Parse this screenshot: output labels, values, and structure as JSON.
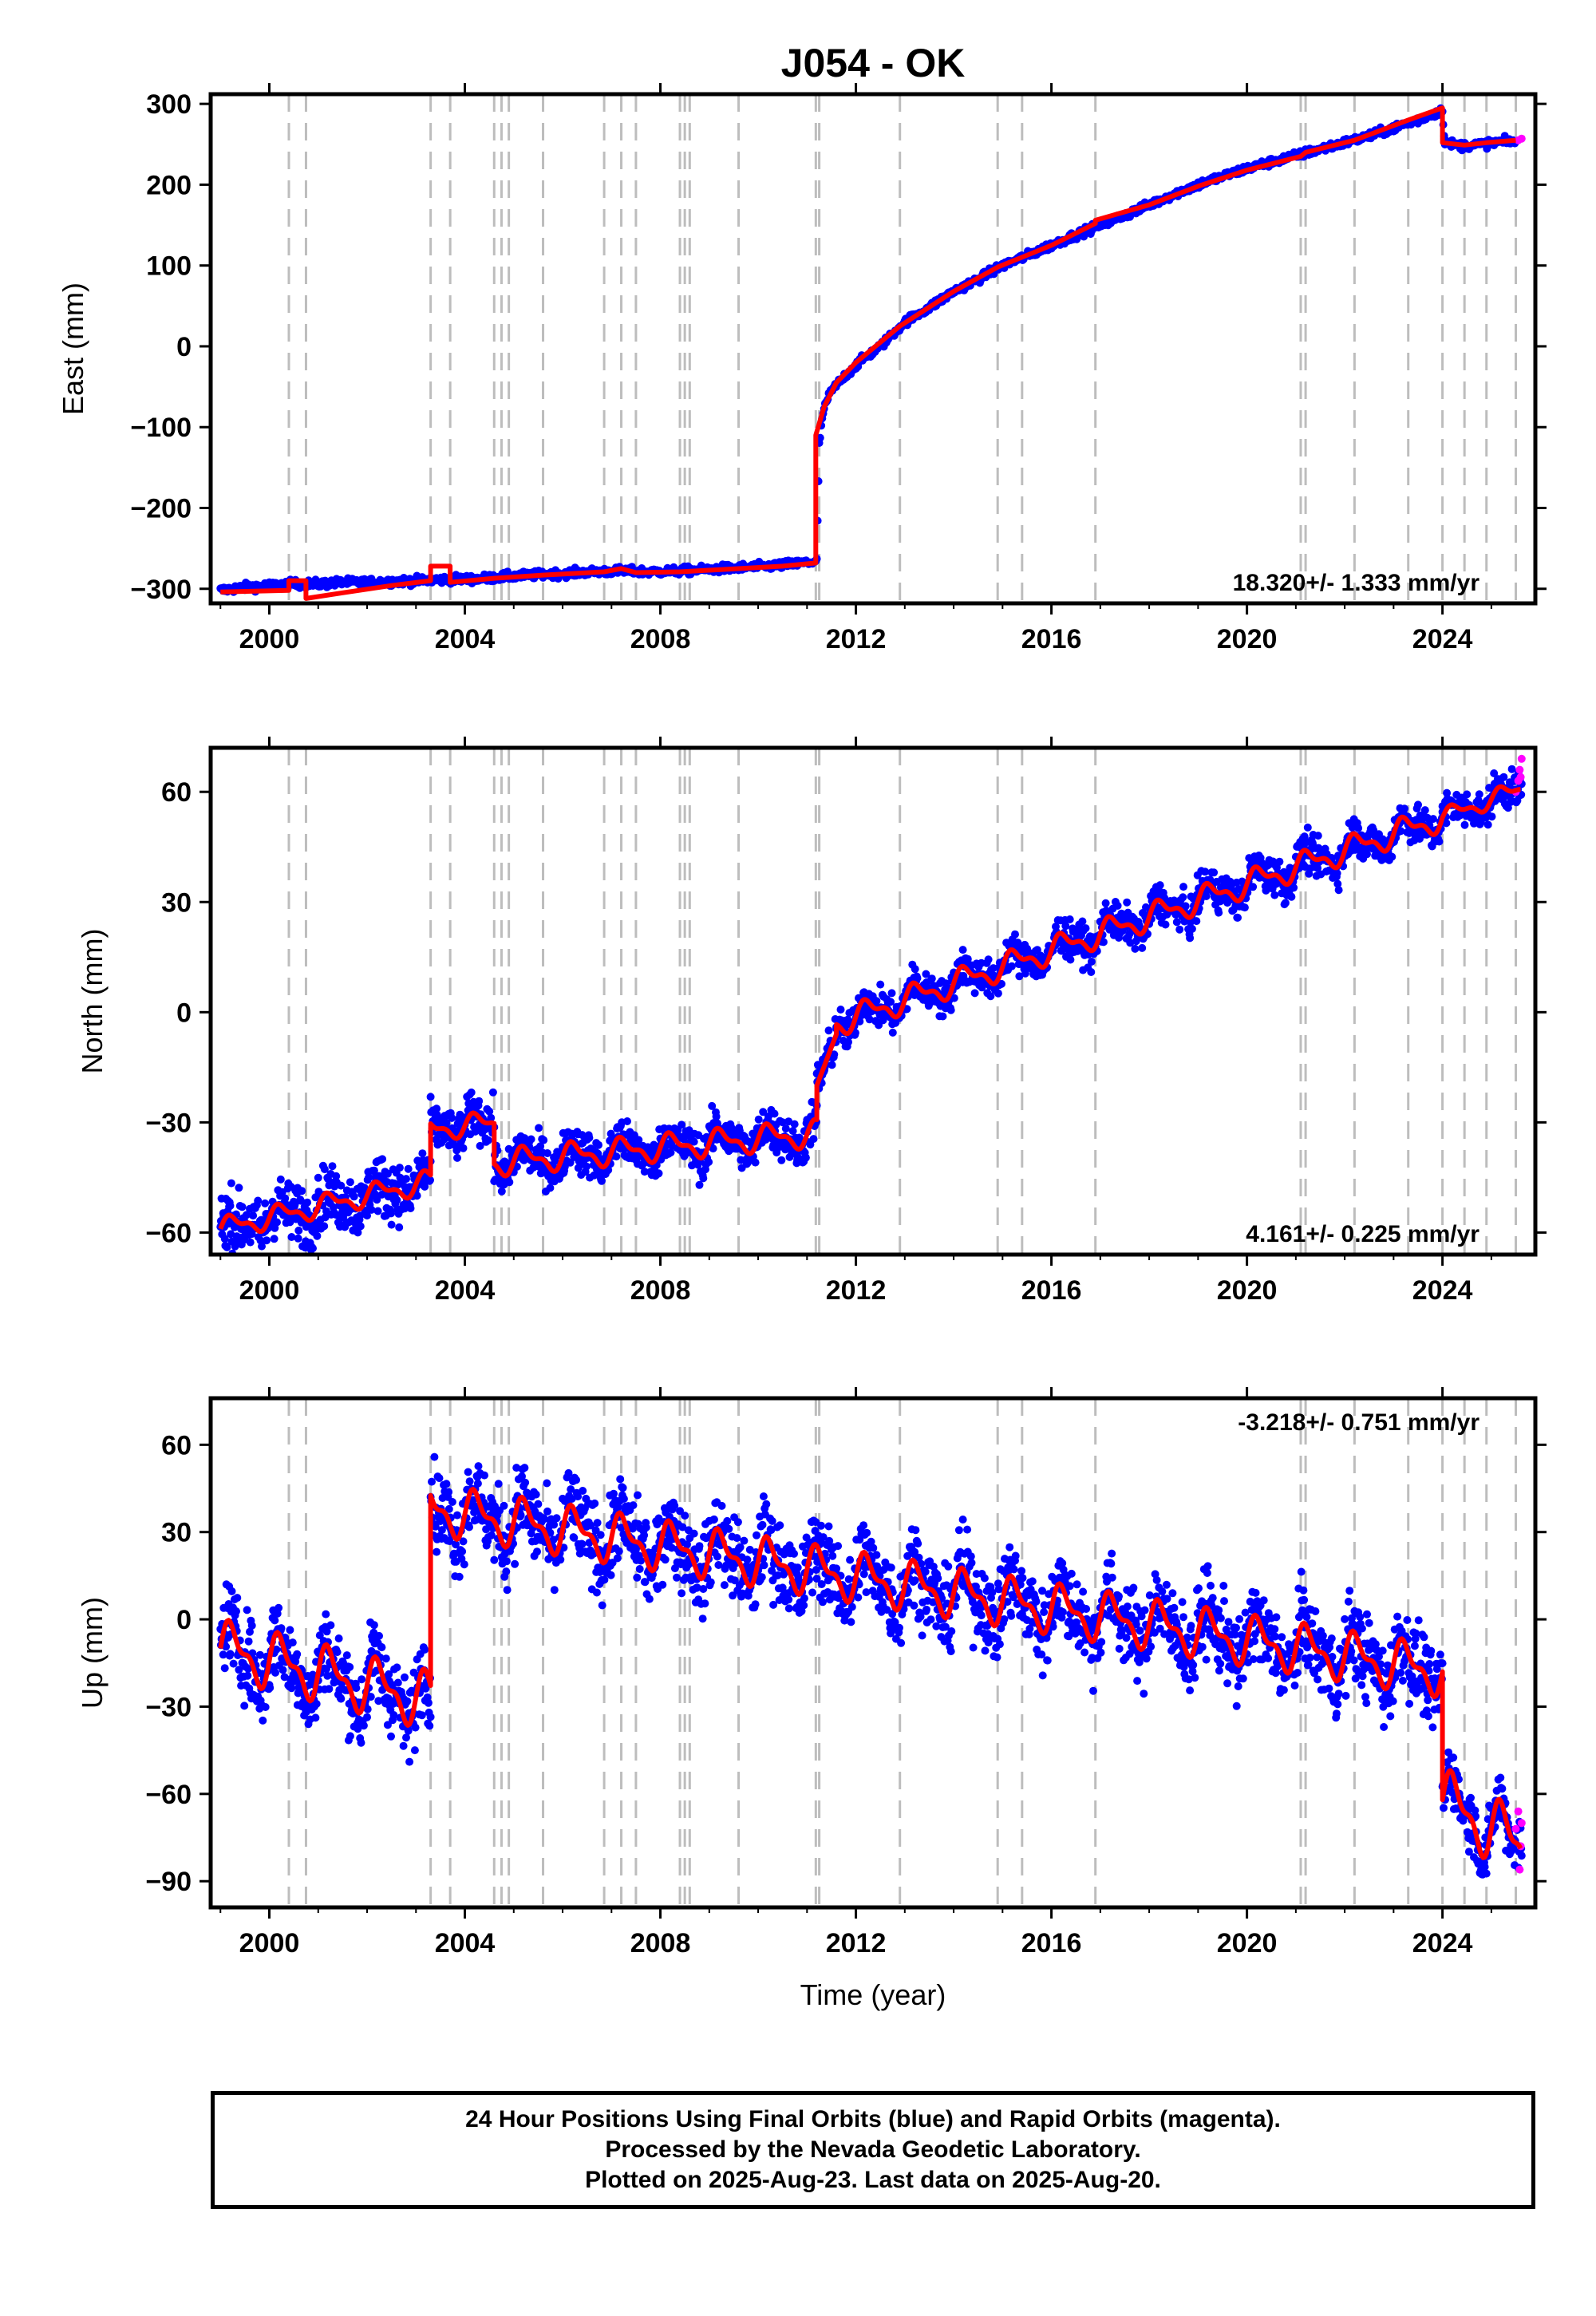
{
  "chart_data": [
    {
      "type": "scatter",
      "title": "J054 - OK",
      "xlabel": "",
      "ylabel": "East (mm)",
      "xlim": [
        1998.8,
        2025.9
      ],
      "ylim": [
        -318,
        312
      ],
      "x_ticks": [
        2000,
        2004,
        2008,
        2012,
        2016,
        2020,
        2024
      ],
      "x_tick_labels": [
        "2000",
        "2004",
        "2008",
        "2012",
        "2016",
        "2020",
        "2024"
      ],
      "y_ticks": [
        -300,
        -200,
        -100,
        0,
        100,
        200,
        300
      ],
      "y_tick_labels": [
        "−300",
        "−200",
        "−100",
        "0",
        "100",
        "200",
        "300"
      ],
      "rate_label": "18.320+/- 1.333 mm/yr",
      "rate_position": "bottom-right",
      "grid": false,
      "event_lines": [
        2000.4,
        2000.75,
        2003.3,
        2003.7,
        2004.6,
        2004.75,
        2004.9,
        2005.6,
        2006.85,
        2007.2,
        2007.5,
        2008.4,
        2008.5,
        2008.6,
        2009.6,
        2011.18,
        2011.25,
        2012.9,
        2014.9,
        2015.4,
        2016.9,
        2021.1,
        2021.2,
        2022.2,
        2023.3,
        2024.0,
        2024.45,
        2024.9,
        2025.5
      ],
      "series": [
        {
          "role": "final orbits",
          "color": "#0000ff",
          "points": [
            [
              1999.0,
              -302
            ],
            [
              1999.5,
              -298
            ],
            [
              2000.0,
              -296
            ],
            [
              2000.5,
              -294
            ],
            [
              2001.0,
              -294
            ],
            [
              2001.5,
              -292
            ],
            [
              2002.0,
              -292
            ],
            [
              2002.5,
              -291
            ],
            [
              2003.0,
              -290
            ],
            [
              2003.4,
              -289
            ],
            [
              2003.8,
              -288
            ],
            [
              2004.2,
              -288
            ],
            [
              2004.8,
              -285
            ],
            [
              2005.4,
              -283
            ],
            [
              2006.0,
              -281
            ],
            [
              2006.6,
              -279
            ],
            [
              2007.2,
              -278
            ],
            [
              2007.8,
              -279
            ],
            [
              2008.4,
              -278
            ],
            [
              2009.0,
              -276
            ],
            [
              2009.6,
              -274
            ],
            [
              2010.2,
              -272
            ],
            [
              2010.8,
              -269
            ],
            [
              2011.2,
              -266
            ],
            [
              2011.25,
              -120
            ],
            [
              2011.35,
              -75
            ],
            [
              2011.5,
              -55
            ],
            [
              2011.8,
              -35
            ],
            [
              2012.1,
              -18
            ],
            [
              2012.5,
              0
            ],
            [
              2013.0,
              30
            ],
            [
              2013.5,
              48
            ],
            [
              2014.0,
              68
            ],
            [
              2014.5,
              83
            ],
            [
              2015.0,
              100
            ],
            [
              2015.5,
              112
            ],
            [
              2016.0,
              125
            ],
            [
              2016.5,
              138
            ],
            [
              2017.0,
              150
            ],
            [
              2017.5,
              162
            ],
            [
              2018.0,
              175
            ],
            [
              2018.5,
              188
            ],
            [
              2019.0,
              200
            ],
            [
              2019.5,
              210
            ],
            [
              2020.0,
              220
            ],
            [
              2020.5,
              228
            ],
            [
              2021.0,
              236
            ],
            [
              2021.5,
              244
            ],
            [
              2022.0,
              252
            ],
            [
              2022.5,
              260
            ],
            [
              2023.0,
              270
            ],
            [
              2023.5,
              280
            ],
            [
              2024.0,
              292
            ],
            [
              2024.05,
              252
            ],
            [
              2024.4,
              248
            ],
            [
              2024.8,
              250
            ],
            [
              2025.2,
              253
            ],
            [
              2025.5,
              254
            ]
          ]
        },
        {
          "role": "rapid orbits",
          "color": "#ff00ff",
          "points": [
            [
              2025.55,
              255
            ],
            [
              2025.62,
              257
            ]
          ]
        }
      ],
      "model": {
        "color": "#ff0000",
        "points": [
          [
            1999.0,
            -304
          ],
          [
            2000.4,
            -302
          ],
          [
            2000.4,
            -290
          ],
          [
            2000.75,
            -290
          ],
          [
            2000.75,
            -312
          ],
          [
            2001.5,
            -305
          ],
          [
            2002.5,
            -296
          ],
          [
            2003.3,
            -290
          ],
          [
            2003.3,
            -272
          ],
          [
            2003.7,
            -272
          ],
          [
            2003.7,
            -292
          ],
          [
            2004.6,
            -287
          ],
          [
            2005.6,
            -283
          ],
          [
            2006.85,
            -279
          ],
          [
            2007.2,
            -275
          ],
          [
            2007.5,
            -280
          ],
          [
            2008.4,
            -279
          ],
          [
            2009.6,
            -275
          ],
          [
            2010.5,
            -272
          ],
          [
            2011.18,
            -268
          ],
          [
            2011.18,
            -110
          ],
          [
            2011.35,
            -75
          ],
          [
            2011.6,
            -45
          ],
          [
            2012.0,
            -20
          ],
          [
            2012.9,
            25
          ],
          [
            2014.0,
            68
          ],
          [
            2014.9,
            98
          ],
          [
            2016.0,
            125
          ],
          [
            2016.9,
            152
          ],
          [
            2016.9,
            156
          ],
          [
            2018.0,
            175
          ],
          [
            2019.0,
            198
          ],
          [
            2020.0,
            218
          ],
          [
            2021.1,
            235
          ],
          [
            2021.2,
            240
          ],
          [
            2022.2,
            255
          ],
          [
            2023.3,
            280
          ],
          [
            2024.0,
            295
          ],
          [
            2024.0,
            252
          ],
          [
            2024.45,
            249
          ],
          [
            2024.9,
            252
          ],
          [
            2025.5,
            255
          ]
        ]
      }
    },
    {
      "type": "scatter",
      "title": "",
      "xlabel": "",
      "ylabel": "North (mm)",
      "xlim": [
        1998.8,
        2025.9
      ],
      "ylim": [
        -66,
        72
      ],
      "x_ticks": [
        2000,
        2004,
        2008,
        2012,
        2016,
        2020,
        2024
      ],
      "x_tick_labels": [
        "2000",
        "2004",
        "2008",
        "2012",
        "2016",
        "2020",
        "2024"
      ],
      "y_ticks": [
        -60,
        -30,
        0,
        30,
        60
      ],
      "y_tick_labels": [
        "−60",
        "−30",
        "0",
        "30",
        "60"
      ],
      "rate_label": "4.161+/- 0.225 mm/yr",
      "rate_position": "bottom-right",
      "grid": false,
      "segments": [
        {
          "t0": 1999.0,
          "t1": 2003.3,
          "v0": -59,
          "v1": -46,
          "amp": 2.5,
          "noise": 4
        },
        {
          "t0": 2003.3,
          "t1": 2004.6,
          "v0": -32,
          "v1": -30,
          "amp": 2.5,
          "noise": 3
        },
        {
          "t0": 2004.6,
          "t1": 2011.2,
          "v0": -41,
          "v1": -33,
          "amp": 3,
          "noise": 3
        },
        {
          "t0": 2011.2,
          "t1": 2011.6,
          "v0": -20,
          "v1": -6,
          "amp": 0,
          "noise": 3
        },
        {
          "t0": 2011.6,
          "t1": 2024.0,
          "v0": -3,
          "v1": 53,
          "amp": 3,
          "noise": 2.5
        },
        {
          "t0": 2024.0,
          "t1": 2025.62,
          "v0": 53,
          "v1": 61,
          "amp": 2,
          "noise": 2.5
        }
      ],
      "rapid_points": [
        [
          2025.5,
          60
        ],
        [
          2025.55,
          63
        ],
        [
          2025.58,
          66
        ],
        [
          2025.62,
          69
        ],
        [
          2025.6,
          64
        ]
      ],
      "colors": {
        "final": "#0000ff",
        "rapid": "#ff00ff",
        "model": "#ff0000"
      }
    },
    {
      "type": "scatter",
      "title": "",
      "xlabel": "Time (year)",
      "ylabel": "Up (mm)",
      "xlim": [
        1998.8,
        2025.9
      ],
      "ylim": [
        -99,
        76
      ],
      "x_ticks": [
        2000,
        2004,
        2008,
        2012,
        2016,
        2020,
        2024
      ],
      "x_tick_labels": [
        "2000",
        "2004",
        "2008",
        "2012",
        "2016",
        "2020",
        "2024"
      ],
      "y_ticks": [
        -90,
        -60,
        -30,
        0,
        30,
        60
      ],
      "y_tick_labels": [
        "−90",
        "−60",
        "−30",
        "0",
        "30",
        "60"
      ],
      "rate_label": "-3.218+/- 0.751 mm/yr",
      "rate_position": "top-right",
      "grid": false,
      "segments": [
        {
          "t0": 1999.0,
          "t1": 2003.3,
          "v0": -10,
          "v1": -28,
          "amp": 8,
          "noise": 7
        },
        {
          "t0": 2003.3,
          "t1": 2024.0,
          "v0": 38,
          "v1": -18,
          "amp": 7,
          "noise": 7
        },
        {
          "t0": 2024.0,
          "t1": 2025.62,
          "v0": -62,
          "v1": -78,
          "amp": 9,
          "noise": 5
        }
      ],
      "rapid_points": [
        [
          2025.5,
          -72
        ],
        [
          2025.55,
          -66
        ],
        [
          2025.6,
          -78
        ],
        [
          2025.58,
          -86
        ],
        [
          2025.62,
          -70
        ]
      ],
      "colors": {
        "final": "#0000ff",
        "rapid": "#ff00ff",
        "model": "#ff0000"
      }
    }
  ],
  "footer": {
    "line1": "24 Hour Positions Using Final Orbits (blue) and Rapid Orbits (magenta).",
    "line2": "Processed by the Nevada Geodetic Laboratory.",
    "line3": "Plotted on 2025-Aug-23. Last data on 2025-Aug-20."
  }
}
